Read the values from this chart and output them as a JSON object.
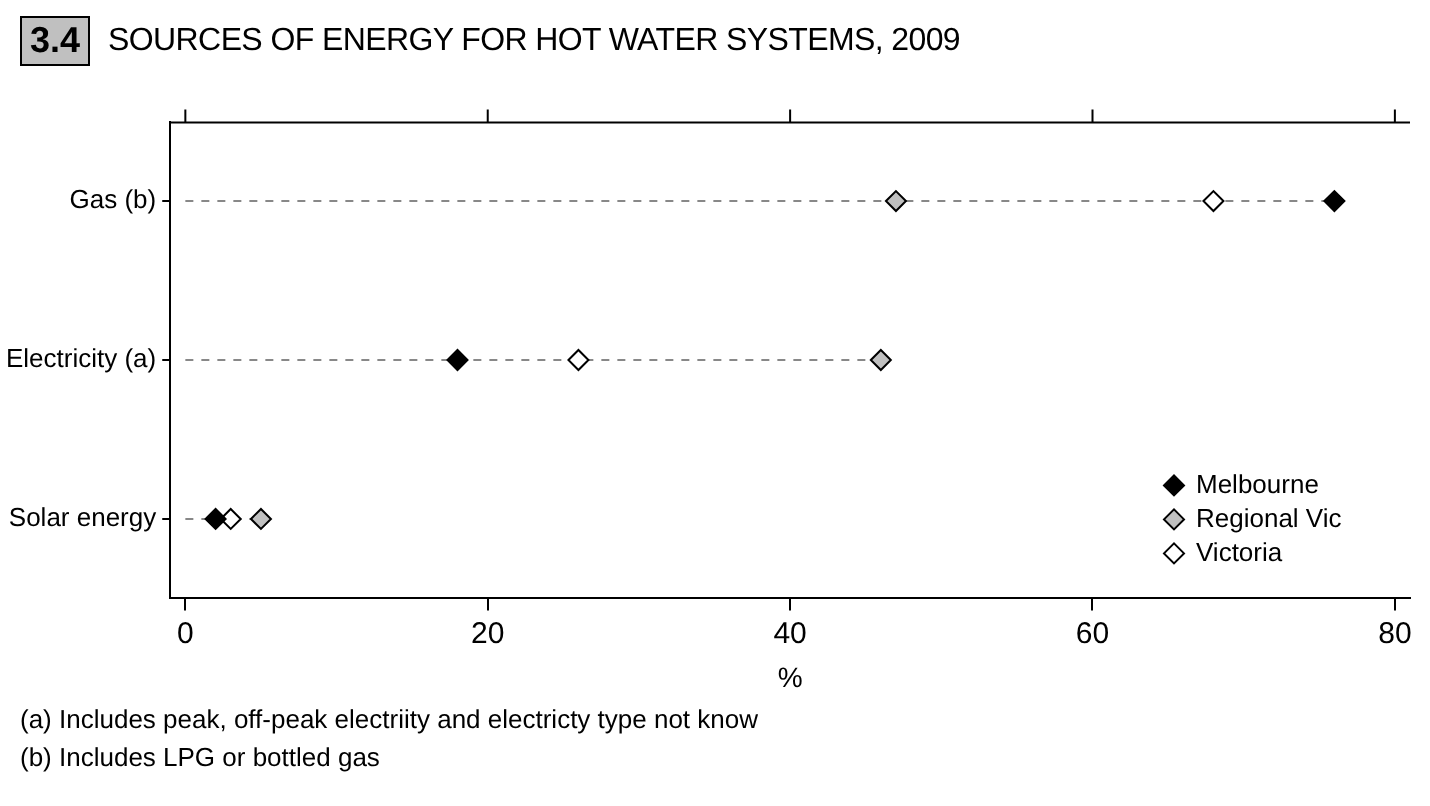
{
  "chart_data": {
    "type": "scatter",
    "title": "SOURCES OF ENERGY FOR HOT WATER SYSTEMS, 2009",
    "xlabel": "%",
    "categories": [
      "Gas (b)",
      "Electricity (a)",
      "Solar energy"
    ],
    "series": [
      {
        "name": "Melbourne",
        "color": "#000000",
        "values": [
          76,
          18,
          2
        ]
      },
      {
        "name": "Regional Vic",
        "color": "#c0c0c0",
        "values": [
          47,
          46,
          5
        ]
      },
      {
        "name": "Victoria",
        "color": "#ffffff",
        "values": [
          68,
          26,
          3
        ]
      }
    ],
    "orientation": "horizontal",
    "xlim": [
      -1,
      81
    ],
    "xticks": [
      0,
      20,
      40,
      60,
      80
    ],
    "marker": "diamond",
    "legend": "bottom right",
    "annotations": [
      "3.4",
      "(a) Includes peak, off-peak electriity and electricty type not know",
      "(b) Includes LPG or bottled gas"
    ]
  }
}
